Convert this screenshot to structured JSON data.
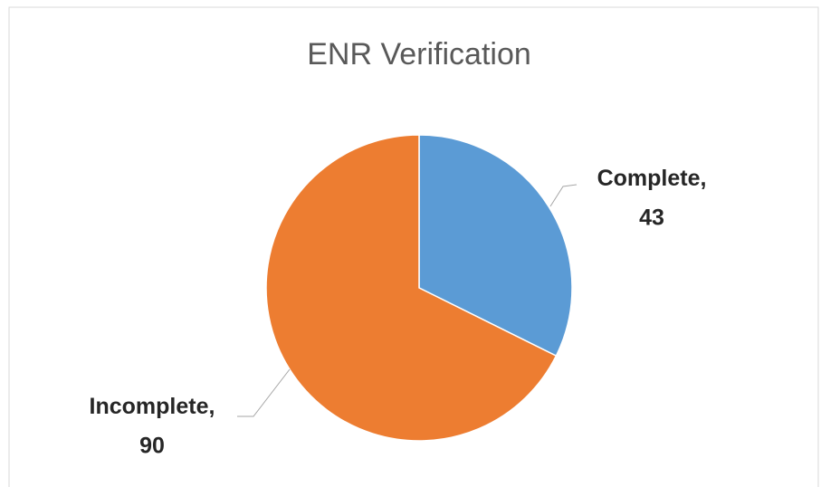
{
  "chart_data": {
    "type": "pie",
    "title": "ENR Verification",
    "categories": [
      "Complete",
      "Incomplete"
    ],
    "values": [
      43,
      90
    ],
    "colors": [
      "#5b9bd5",
      "#ed7d31"
    ],
    "label_separator": ","
  }
}
